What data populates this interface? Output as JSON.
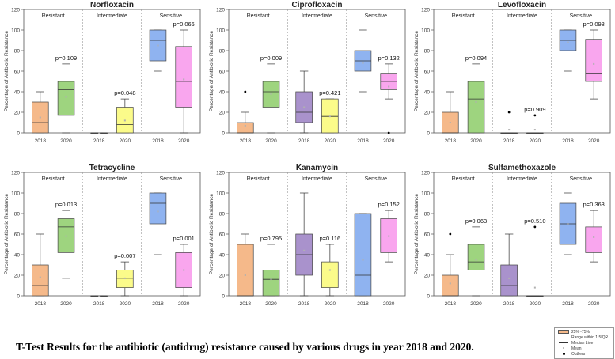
{
  "caption": "T-Test Results for the antibiotic (antidrug) resistance caused by various drugs in year 2018 and 2020.",
  "legend": {
    "box": "25%~75%",
    "whisker": "Range within 1.5IQR",
    "median": "Median Line",
    "mean": "Mean",
    "outliers": "Outliers"
  },
  "colors": {
    "resistant_2018": "#f5b98a",
    "resistant_2020": "#9ed47f",
    "intermediate_2018": "#a992cc",
    "intermediate_2020": "#fbfb8a",
    "sensitive_2018": "#8fb3f0",
    "sensitive_2020": "#f9a6ee"
  },
  "chart_data": [
    {
      "type": "boxplot",
      "title": "Norfloxacin",
      "ylabel": "Percentage of Antibiotic Resistance",
      "ylim": [
        0,
        120
      ],
      "yticks": [
        0,
        20,
        40,
        60,
        80,
        100,
        120
      ],
      "groups": [
        "Resistant",
        "Intermediate",
        "Sensitive"
      ],
      "xlabels": [
        "2018",
        "2020",
        "2018",
        "2020",
        "2018",
        "2020"
      ],
      "pvalues": [
        "p=0.109",
        "p=0.048",
        "p=0.066"
      ],
      "boxes": [
        {
          "q1": 0,
          "median": 10,
          "q3": 30,
          "min": 0,
          "max": 40,
          "mean": 15,
          "outliers": []
        },
        {
          "q1": 17,
          "median": 42,
          "q3": 50,
          "min": 0,
          "max": 67,
          "mean": 35,
          "outliers": []
        },
        {
          "q1": 0,
          "median": 0,
          "q3": 0,
          "min": 0,
          "max": 0,
          "mean": 0,
          "outliers": []
        },
        {
          "q1": 0,
          "median": 8,
          "q3": 25,
          "min": 0,
          "max": 33,
          "mean": 12,
          "outliers": []
        },
        {
          "q1": 70,
          "median": 90,
          "q3": 100,
          "min": 60,
          "max": 100,
          "mean": 85,
          "outliers": []
        },
        {
          "q1": 25,
          "median": 50,
          "q3": 84,
          "min": 0,
          "max": 100,
          "mean": 52,
          "outliers": []
        }
      ]
    },
    {
      "type": "boxplot",
      "title": "Ciprofloxacin",
      "ylabel": "Percentage of Antibiotic Resistance",
      "ylim": [
        0,
        120
      ],
      "yticks": [
        0,
        20,
        40,
        60,
        80,
        100,
        120
      ],
      "groups": [
        "Resistant",
        "Intermediate",
        "Sensitive"
      ],
      "xlabels": [
        "2018",
        "2020",
        "2018",
        "2020",
        "2018",
        "2020"
      ],
      "pvalues": [
        "p=0.009",
        "p=0.421",
        "p=0.132"
      ],
      "boxes": [
        {
          "q1": 0,
          "median": 0,
          "q3": 10,
          "min": 0,
          "max": 20,
          "mean": 7,
          "outliers": [
            40
          ]
        },
        {
          "q1": 25,
          "median": 40,
          "q3": 50,
          "min": 0,
          "max": 67,
          "mean": 38,
          "outliers": []
        },
        {
          "q1": 10,
          "median": 20,
          "q3": 40,
          "min": 0,
          "max": 60,
          "mean": 25,
          "outliers": []
        },
        {
          "q1": 0,
          "median": 16,
          "q3": 33,
          "min": 0,
          "max": 33,
          "mean": 16,
          "outliers": []
        },
        {
          "q1": 60,
          "median": 70,
          "q3": 80,
          "min": 40,
          "max": 100,
          "mean": 68,
          "outliers": []
        },
        {
          "q1": 42,
          "median": 50,
          "q3": 58,
          "min": 33,
          "max": 67,
          "mean": 45,
          "outliers": [
            0
          ]
        }
      ]
    },
    {
      "type": "boxplot",
      "title": "Levofloxacin",
      "ylabel": "Percentage of Antibiotic Resistance",
      "ylim": [
        0,
        120
      ],
      "yticks": [
        0,
        20,
        40,
        60,
        80,
        100,
        120
      ],
      "groups": [
        "Resistant",
        "Intermediate",
        "Sensitive"
      ],
      "xlabels": [
        "2018",
        "2020",
        "2018",
        "2020",
        "2018",
        "2020"
      ],
      "pvalues": [
        "p=0.094",
        "p=0.909",
        "p=0.098"
      ],
      "boxes": [
        {
          "q1": 0,
          "median": 0,
          "q3": 20,
          "min": 0,
          "max": 40,
          "mean": 10,
          "outliers": []
        },
        {
          "q1": 0,
          "median": 33,
          "q3": 50,
          "min": 0,
          "max": 67,
          "mean": 30,
          "outliers": []
        },
        {
          "q1": 0,
          "median": 0,
          "q3": 0,
          "min": 0,
          "max": 0,
          "mean": 3,
          "outliers": [
            20
          ]
        },
        {
          "q1": 0,
          "median": 0,
          "q3": 0,
          "min": 0,
          "max": 0,
          "mean": 3,
          "outliers": [
            17
          ]
        },
        {
          "q1": 80,
          "median": 90,
          "q3": 100,
          "min": 60,
          "max": 100,
          "mean": 88,
          "outliers": []
        },
        {
          "q1": 50,
          "median": 58,
          "q3": 91,
          "min": 33,
          "max": 100,
          "mean": 67,
          "outliers": []
        }
      ]
    },
    {
      "type": "boxplot",
      "title": "Tetracycline",
      "ylabel": "Percentage of Antibiotic Resistance",
      "ylim": [
        0,
        120
      ],
      "yticks": [
        0,
        20,
        40,
        60,
        80,
        100,
        120
      ],
      "groups": [
        "Resistant",
        "Intermediate",
        "Sensitive"
      ],
      "xlabels": [
        "2018",
        "2020",
        "2018",
        "2020",
        "2018",
        "2020"
      ],
      "pvalues": [
        "p=0.013",
        "p=0.007",
        "p=0.001"
      ],
      "boxes": [
        {
          "q1": 0,
          "median": 10,
          "q3": 30,
          "min": 0,
          "max": 60,
          "mean": 18,
          "outliers": []
        },
        {
          "q1": 42,
          "median": 67,
          "q3": 75,
          "min": 17,
          "max": 83,
          "mean": 58,
          "outliers": []
        },
        {
          "q1": 0,
          "median": 0,
          "q3": 0,
          "min": 0,
          "max": 0,
          "mean": 0,
          "outliers": []
        },
        {
          "q1": 8,
          "median": 17,
          "q3": 25,
          "min": 0,
          "max": 33,
          "mean": 17,
          "outliers": []
        },
        {
          "q1": 70,
          "median": 90,
          "q3": 100,
          "min": 40,
          "max": 100,
          "mean": 82,
          "outliers": []
        },
        {
          "q1": 8,
          "median": 25,
          "q3": 42,
          "min": 0,
          "max": 50,
          "mean": 25,
          "outliers": []
        }
      ]
    },
    {
      "type": "boxplot",
      "title": "Kanamycin",
      "ylabel": "Percentage of Antibiotic Resistance",
      "ylim": [
        0,
        120
      ],
      "yticks": [
        0,
        20,
        40,
        60,
        80,
        100,
        120
      ],
      "groups": [
        "Resistant",
        "Intermediate",
        "Sensitive"
      ],
      "xlabels": [
        "2018",
        "2020",
        "2018",
        "2020",
        "2018",
        "2020"
      ],
      "pvalues": [
        "p=0.795",
        "p=0.116",
        "p=0.152"
      ],
      "boxes": [
        {
          "q1": 0,
          "median": 0,
          "q3": 50,
          "min": 0,
          "max": 60,
          "mean": 20,
          "outliers": []
        },
        {
          "q1": 0,
          "median": 16,
          "q3": 25,
          "min": 0,
          "max": 50,
          "mean": 16,
          "outliers": []
        },
        {
          "q1": 20,
          "median": 40,
          "q3": 60,
          "min": 0,
          "max": 100,
          "mean": 44,
          "outliers": []
        },
        {
          "q1": 8,
          "median": 25,
          "q3": 33,
          "min": 0,
          "max": 50,
          "mean": 25,
          "outliers": []
        },
        {
          "q1": 0,
          "median": 20,
          "q3": 80,
          "min": 0,
          "max": 80,
          "mean": 35,
          "outliers": []
        },
        {
          "q1": 42,
          "median": 58,
          "q3": 75,
          "min": 33,
          "max": 83,
          "mean": 58,
          "outliers": []
        }
      ]
    },
    {
      "type": "boxplot",
      "title": "Sulfamethoxazole",
      "ylabel": "Percentage of Antibiotic Resistance",
      "ylim": [
        0,
        120
      ],
      "yticks": [
        0,
        20,
        40,
        60,
        80,
        100,
        120
      ],
      "groups": [
        "Resistant",
        "Intermediate",
        "Sensitive"
      ],
      "xlabels": [
        "2018",
        "2020",
        "2018",
        "2020",
        "2018",
        "2020"
      ],
      "pvalues": [
        "p=0.063",
        "p=0.510",
        "p=0.363"
      ],
      "boxes": [
        {
          "q1": 0,
          "median": 0,
          "q3": 20,
          "min": 0,
          "max": 40,
          "mean": 12,
          "outliers": [
            60
          ]
        },
        {
          "q1": 25,
          "median": 33,
          "q3": 50,
          "min": 0,
          "max": 67,
          "mean": 35,
          "outliers": []
        },
        {
          "q1": 0,
          "median": 10,
          "q3": 30,
          "min": 0,
          "max": 60,
          "mean": 17,
          "outliers": []
        },
        {
          "q1": 0,
          "median": 0,
          "q3": 0,
          "min": 0,
          "max": 0,
          "mean": 8,
          "outliers": [
            67
          ]
        },
        {
          "q1": 50,
          "median": 70,
          "q3": 90,
          "min": 40,
          "max": 100,
          "mean": 70,
          "outliers": []
        },
        {
          "q1": 42,
          "median": 58,
          "q3": 67,
          "min": 33,
          "max": 83,
          "mean": 57,
          "outliers": []
        }
      ]
    }
  ]
}
